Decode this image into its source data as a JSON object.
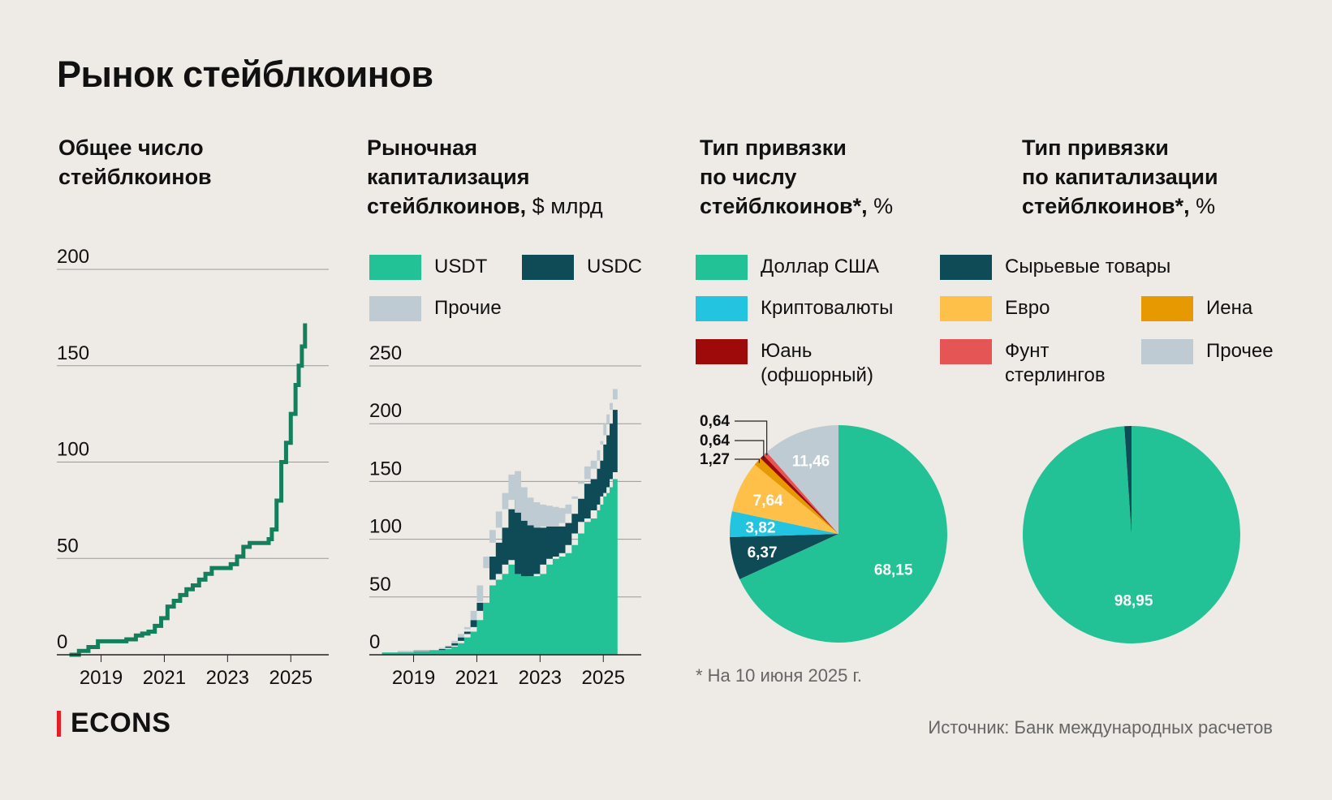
{
  "title": "Рынок стейблкоинов",
  "footnote": "* На 10 июня 2025 г.",
  "source": "Источник: Банк международных расчетов",
  "logo": "ECONS",
  "colors": {
    "usd": "#22C296",
    "commodity": "#0F4A57",
    "crypto": "#22C4E0",
    "euro": "#FFC04A",
    "yen": "#E69900",
    "yuan": "#9E0A0A",
    "gbp": "#E55555",
    "other": "#BECBD2",
    "line": "#137F5C"
  },
  "panels": {
    "count": {
      "title_lines": [
        "Общее число",
        "стейблкоинов"
      ]
    },
    "cap": {
      "title_lines": [
        "Рыночная",
        "капитализация"
      ],
      "title_last": "стейблкоинов,",
      "title_unit": " $ млрд"
    },
    "pie1": {
      "title_lines": [
        "Тип привязки",
        "по числу"
      ],
      "title_last": "стейблкоинов*,",
      "title_unit": " %"
    },
    "pie2": {
      "title_lines": [
        "Тип привязки",
        "по капитализации"
      ],
      "title_last": "стейблкоинов*,",
      "title_unit": " %"
    }
  },
  "cap_legend": [
    {
      "label": "USDT",
      "color": "#22C296"
    },
    {
      "label": "USDC",
      "color": "#0F4A57"
    },
    {
      "label": "Прочие",
      "color": "#BECBD2"
    }
  ],
  "peg_legend": [
    {
      "label": "Доллар США",
      "color": "#22C296"
    },
    {
      "label": "Сырьевые товары",
      "color": "#0F4A57"
    },
    {
      "label": "Криптовалюты",
      "color": "#22C4E0"
    },
    {
      "label": "Евро",
      "color": "#FFC04A"
    },
    {
      "label": "Иена",
      "color": "#E69900"
    },
    {
      "label": "Юань",
      "label2": "(офшорный)",
      "color": "#9E0A0A"
    },
    {
      "label": "Фунт",
      "label2": "стерлингов",
      "color": "#E55555"
    },
    {
      "label": "Прочее",
      "color": "#BECBD2"
    }
  ],
  "chart_data": [
    {
      "type": "line",
      "title": "Общее число стейблкоинов",
      "x_ticks": [
        "2019",
        "2021",
        "2023",
        "2025"
      ],
      "x_tick_values": [
        2019,
        2021,
        2023,
        2025
      ],
      "y_ticks": [
        "0",
        "50",
        "100",
        "150",
        "200"
      ],
      "y_tick_values": [
        0,
        50,
        100,
        150,
        200
      ],
      "xlim": [
        2017.6,
        2026.2
      ],
      "ylim": [
        0,
        200
      ],
      "x": [
        2018.0,
        2018.3,
        2018.6,
        2018.9,
        2019.2,
        2019.5,
        2019.8,
        2020.1,
        2020.3,
        2020.5,
        2020.7,
        2020.9,
        2021.1,
        2021.3,
        2021.5,
        2021.7,
        2021.9,
        2022.1,
        2022.3,
        2022.5,
        2022.8,
        2023.1,
        2023.3,
        2023.5,
        2023.7,
        2023.9,
        2024.1,
        2024.3,
        2024.4,
        2024.55,
        2024.7,
        2024.85,
        2025.0,
        2025.15,
        2025.25,
        2025.35,
        2025.45
      ],
      "y": [
        0,
        2,
        4,
        7,
        7,
        7,
        8,
        10,
        11,
        12,
        15,
        19,
        25,
        28,
        31,
        34,
        36,
        39,
        42,
        45,
        45,
        47,
        51,
        56,
        58,
        58,
        58,
        60,
        65,
        80,
        100,
        110,
        125,
        140,
        150,
        160,
        172
      ]
    },
    {
      "type": "area",
      "title": "Рыночная капитализация стейблкоинов, $ млрд",
      "x_ticks": [
        "2019",
        "2021",
        "2023",
        "2025"
      ],
      "x_tick_values": [
        2019,
        2021,
        2023,
        2025
      ],
      "y_ticks": [
        "0",
        "50",
        "100",
        "150",
        "200",
        "250"
      ],
      "y_tick_values": [
        0,
        50,
        100,
        150,
        200,
        250
      ],
      "xlim": [
        2017.6,
        2026.2
      ],
      "ylim": [
        0,
        250
      ],
      "x": [
        2018.0,
        2018.5,
        2019.0,
        2019.5,
        2019.8,
        2020.0,
        2020.2,
        2020.4,
        2020.6,
        2020.8,
        2021.0,
        2021.2,
        2021.4,
        2021.6,
        2021.8,
        2022.0,
        2022.2,
        2022.4,
        2022.6,
        2022.8,
        2023.0,
        2023.2,
        2023.4,
        2023.6,
        2023.8,
        2024.0,
        2024.2,
        2024.4,
        2024.6,
        2024.8,
        2024.9,
        2025.0,
        2025.1,
        2025.2,
        2025.3,
        2025.45
      ],
      "series": [
        {
          "name": "USDT",
          "values": [
            2,
            2,
            3,
            4,
            4,
            5,
            7,
            10,
            15,
            20,
            30,
            45,
            60,
            65,
            70,
            78,
            82,
            70,
            68,
            68,
            70,
            78,
            83,
            85,
            88,
            95,
            105,
            115,
            118,
            125,
            130,
            137,
            140,
            145,
            152,
            158
          ]
        },
        {
          "name": "USDC",
          "values": [
            0,
            0,
            0,
            0,
            0,
            1,
            1,
            2,
            3,
            4,
            8,
            15,
            25,
            32,
            40,
            48,
            52,
            53,
            48,
            44,
            40,
            33,
            28,
            26,
            26,
            27,
            30,
            33,
            34,
            36,
            38,
            45,
            50,
            55,
            60,
            63
          ]
        },
        {
          "name": "Прочие",
          "values": [
            0,
            0,
            0,
            0,
            1,
            1,
            2,
            3,
            4,
            6,
            8,
            15,
            23,
            27,
            30,
            30,
            25,
            22,
            20,
            20,
            20,
            18,
            17,
            16,
            16,
            15,
            15,
            15,
            16,
            16,
            17,
            18,
            18,
            18,
            18,
            18
          ]
        }
      ]
    },
    {
      "type": "pie",
      "title": "Тип привязки по числу стейблкоинов*, %",
      "slices": [
        {
          "name": "Доллар США",
          "value": 68.15,
          "label": "68,15"
        },
        {
          "name": "Сырьевые товары",
          "value": 6.37,
          "label": "6,37"
        },
        {
          "name": "Криптовалюты",
          "value": 3.82,
          "label": "3,82"
        },
        {
          "name": "Евро",
          "value": 7.64,
          "label": "7,64"
        },
        {
          "name": "Иена",
          "value": 1.27,
          "label": "1,27"
        },
        {
          "name": "Юань (офшорный)",
          "value": 0.64,
          "label": "0,64"
        },
        {
          "name": "Фунт стерлингов",
          "value": 0.64,
          "label": "0,64"
        },
        {
          "name": "Прочее",
          "value": 11.46,
          "label": "11,46"
        }
      ]
    },
    {
      "type": "pie",
      "title": "Тип привязки по капитализации стейблкоинов*, %",
      "slices": [
        {
          "name": "Доллар США",
          "value": 98.95,
          "label": "98,95"
        },
        {
          "name": "Сырьевые товары",
          "value": 1.05,
          "label": ""
        }
      ]
    }
  ]
}
